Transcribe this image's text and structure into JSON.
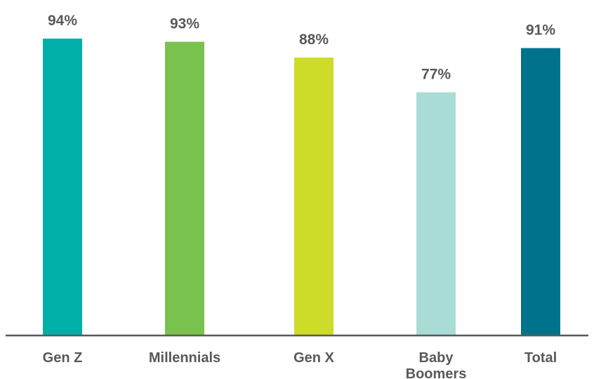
{
  "chart_data": {
    "type": "bar",
    "categories": [
      [
        "Gen Z"
      ],
      [
        "Millennials"
      ],
      [
        "Gen X"
      ],
      [
        "Baby",
        "Boomers"
      ],
      [
        "Total"
      ]
    ],
    "values": [
      94,
      93,
      88,
      77,
      91
    ],
    "value_labels": [
      "94%",
      "93%",
      "88%",
      "77%",
      "91%"
    ],
    "colors": [
      "#00b0a8",
      "#7ac24e",
      "#cddc29",
      "#a9dcd5",
      "#00728c"
    ],
    "ylim": [
      0,
      100
    ],
    "axis_color": "#595959",
    "label_color": "#595959",
    "grid": false,
    "legend": "none"
  }
}
